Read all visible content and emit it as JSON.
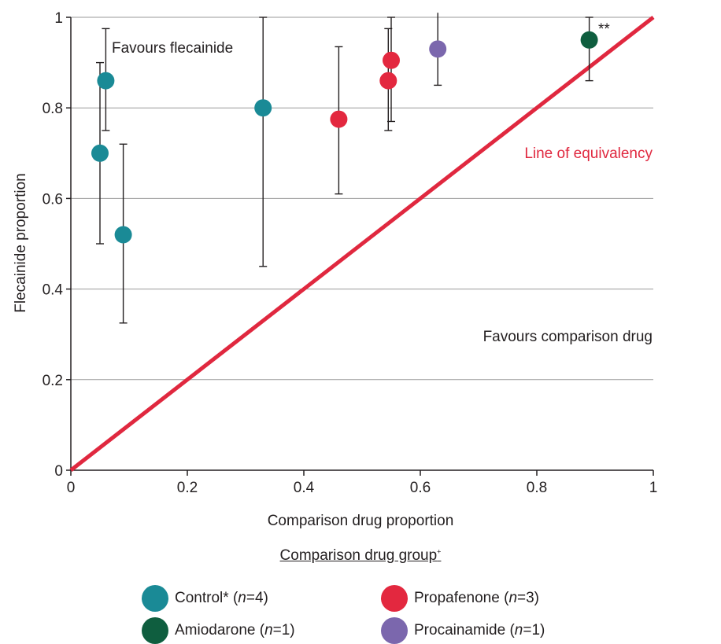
{
  "chart_data": {
    "type": "scatter",
    "xlabel": "Comparison drug proportion",
    "ylabel": "Flecainide proportion",
    "xlim": [
      0,
      1
    ],
    "ylim": [
      0,
      1
    ],
    "x_ticks": [
      "0",
      "0.2",
      "0.4",
      "0.6",
      "0.8",
      "1"
    ],
    "y_ticks": [
      "0",
      "0.2",
      "0.4",
      "0.6",
      "0.8",
      "1"
    ],
    "grid": "horizontal",
    "reference_line": {
      "label": "Line of equivalency",
      "from": [
        0,
        0
      ],
      "to": [
        1,
        1
      ],
      "color": "#e0283f"
    },
    "annotations": [
      {
        "text": "Favours flecainide",
        "color": "#231f20"
      },
      {
        "text": "Favours comparison drug",
        "color": "#231f20"
      },
      {
        "text": "**",
        "color": "#231f20"
      }
    ],
    "series": [
      {
        "name": "Control* (n=4)",
        "color": "#1a8a96",
        "points": [
          {
            "x": 0.05,
            "y": 0.7,
            "lo": 0.5,
            "hi": 0.9
          },
          {
            "x": 0.06,
            "y": 0.86,
            "lo": 0.75,
            "hi": 0.975
          },
          {
            "x": 0.09,
            "y": 0.52,
            "lo": 0.325,
            "hi": 0.72
          },
          {
            "x": 0.33,
            "y": 0.8,
            "lo": 0.45,
            "hi": 1.0
          }
        ]
      },
      {
        "name": "Propafenone (n=3)",
        "color": "#e3283f",
        "points": [
          {
            "x": 0.46,
            "y": 0.775,
            "lo": 0.61,
            "hi": 0.935
          },
          {
            "x": 0.545,
            "y": 0.86,
            "lo": 0.75,
            "hi": 0.975
          },
          {
            "x": 0.55,
            "y": 0.905,
            "lo": 0.77,
            "hi": 1.0
          }
        ]
      },
      {
        "name": "Procainamide (n=1)",
        "color": "#7b67ad",
        "points": [
          {
            "x": 0.63,
            "y": 0.93,
            "lo": 0.85,
            "hi": 1.01
          }
        ]
      },
      {
        "name": "Amiodarone (n=1)",
        "color": "#0f5e3f",
        "points": [
          {
            "x": 0.89,
            "y": 0.95,
            "lo": 0.86,
            "hi": 1.0
          }
        ]
      }
    ]
  },
  "legend": {
    "title": "Comparison drug group",
    "title_mark": "+",
    "items": [
      {
        "name": "Control*",
        "n_prefix": "(",
        "n_var": "n",
        "n_value": "=4)",
        "color": "#1a8a96"
      },
      {
        "name": "Propafenone",
        "n_prefix": "(",
        "n_var": "n",
        "n_value": "=3)",
        "color": "#e3283f"
      },
      {
        "name": "Amiodarone",
        "n_prefix": "(",
        "n_var": "n",
        "n_value": "=1)",
        "color": "#0f5e3f"
      },
      {
        "name": "Procainamide",
        "n_prefix": "(",
        "n_var": "n",
        "n_value": "=1)",
        "color": "#7b67ad"
      }
    ]
  }
}
